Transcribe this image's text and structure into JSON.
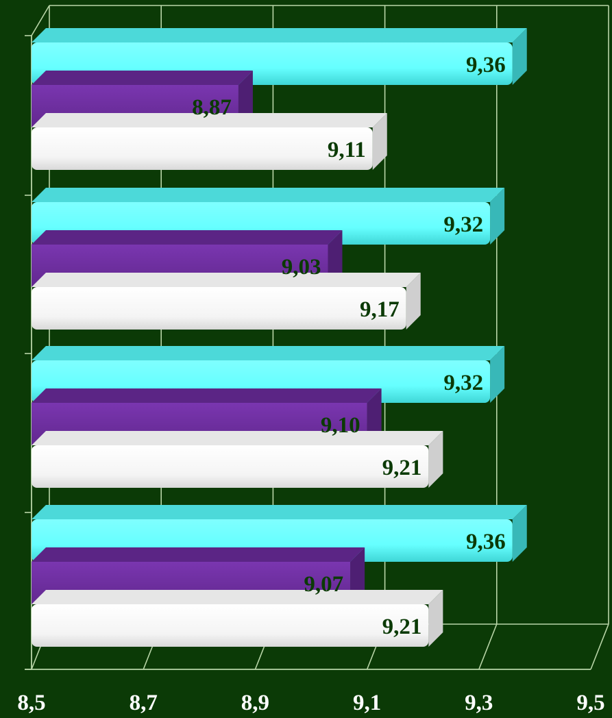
{
  "colors": {
    "background": "#0b3a06",
    "grid": "#b9d6a8",
    "axis_label": "#ffffff",
    "series_white": "#ffffff",
    "series_purple": "#7030a0",
    "series_cyan": "#66ffff",
    "label_dark": "#0b3a06"
  },
  "chart_data": {
    "type": "bar",
    "orientation": "horizontal",
    "style": "3d-clustered",
    "title": "",
    "xlabel": "",
    "ylabel": "",
    "xlim": [
      8.5,
      9.5
    ],
    "x_ticks": [
      "8,5",
      "8,7",
      "8,9",
      "9,1",
      "9,3",
      "9,5"
    ],
    "x_tick_values": [
      8.5,
      8.7,
      8.9,
      9.1,
      9.3,
      9.5
    ],
    "grid": true,
    "legend": "none",
    "categories_count": 4,
    "series": [
      {
        "color": "#ffffff",
        "values": [
          9.11,
          9.17,
          9.21,
          9.21
        ],
        "labels": [
          "9,11",
          "9,17",
          "9,21",
          "9,21"
        ]
      },
      {
        "color": "#7030a0",
        "values": [
          8.87,
          9.03,
          9.1,
          9.07
        ],
        "labels": [
          "8,87",
          "9,03",
          "9,10",
          "9,07"
        ]
      },
      {
        "color": "#66ffff",
        "values": [
          9.36,
          9.32,
          9.32,
          9.36
        ],
        "labels": [
          "9,36",
          "9,32",
          "9,32",
          "9,36"
        ]
      }
    ]
  }
}
